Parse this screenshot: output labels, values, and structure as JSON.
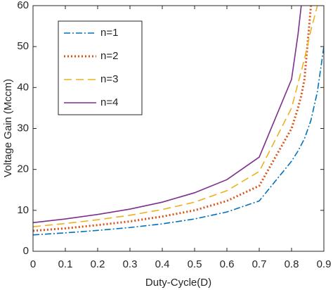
{
  "chart_data": {
    "type": "line",
    "xlabel": "Duty-Cycle(D)",
    "ylabel": "Voltage Gain (Mccm)",
    "x": [
      0,
      0.1,
      0.2,
      0.3,
      0.4,
      0.5,
      0.6,
      0.7,
      0.8,
      0.82,
      0.83,
      0.84,
      0.86,
      0.88,
      0.9
    ],
    "series": [
      {
        "name": "n=1",
        "color": "#0072bd",
        "linestyle": "dashdot",
        "values": [
          4,
          4.5,
          5.1,
          5.8,
          6.7,
          7.9,
          9.6,
          12.3,
          22,
          24.5,
          26,
          27.5,
          32,
          39,
          50
        ]
      },
      {
        "name": "n=2",
        "color": "#d95319",
        "linestyle": "dotted",
        "values": [
          5,
          5.6,
          6.4,
          7.3,
          8.5,
          10,
          12.3,
          16,
          30,
          35,
          38,
          42,
          60,
          null,
          null
        ]
      },
      {
        "name": "n=3",
        "color": "#edb120",
        "linestyle": "dashed",
        "values": [
          6,
          6.8,
          7.7,
          8.8,
          10.2,
          12,
          14.8,
          19.5,
          35,
          41,
          44,
          47,
          54,
          60,
          null
        ]
      },
      {
        "name": "n=4",
        "color": "#7e2f8e",
        "linestyle": "solid",
        "values": [
          7,
          7.9,
          9,
          10.3,
          12,
          14.3,
          17.5,
          23,
          42,
          53,
          60,
          null,
          null,
          null,
          null
        ]
      }
    ],
    "xlim": [
      0,
      0.9
    ],
    "xticks": [
      0,
      0.1,
      0.2,
      0.3,
      0.4,
      0.5,
      0.6,
      0.7,
      0.8,
      0.9
    ],
    "ylim": [
      0,
      60
    ],
    "yticks": [
      0,
      10,
      20,
      30,
      40,
      50,
      60
    ],
    "grid": false,
    "legend": "northwest"
  }
}
